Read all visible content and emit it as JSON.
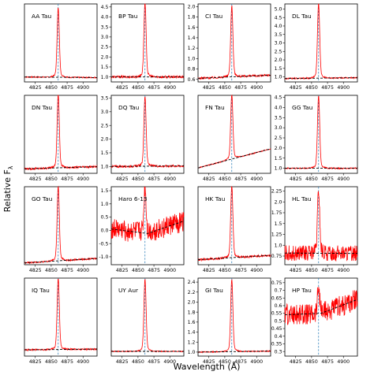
{
  "figure": {
    "xlabel": "Wavelength (Å)",
    "ylabel": "Relative F",
    "ylabel_subscript": "λ"
  },
  "colors": {
    "spectrum": "#ff0000",
    "fit": "#000000",
    "center_line": "#1f77b4",
    "frame": "#000000"
  },
  "chart_data": [
    {
      "type": "line",
      "label": "AA Tau",
      "xticks": [
        4825,
        4850,
        4875,
        4900
      ],
      "yticks": [],
      "ylim": [
        0.6,
        7.2
      ],
      "xlim": [
        4808,
        4922
      ],
      "series": [
        {
          "name": "spectrum",
          "peak": 6.6,
          "base_left": 1.02,
          "base_right": 0.97,
          "noise": 0.05
        }
      ],
      "fit": [
        [
          4808,
          1.02
        ],
        [
          4922,
          0.97
        ]
      ],
      "center": 4861
    },
    {
      "type": "line",
      "label": "BP Tau",
      "xticks": [
        4825,
        4850,
        4875,
        4900
      ],
      "yticks": [
        1.0,
        1.5,
        2.0,
        2.5,
        3.0,
        3.5,
        4.0,
        4.5
      ],
      "ylim": [
        0.75,
        4.65
      ],
      "xlim": [
        4808,
        4922
      ],
      "series": [
        {
          "name": "spectrum",
          "peak": 4.55,
          "base_left": 1.0,
          "base_right": 1.0,
          "noise": 0.06
        }
      ],
      "fit": [
        [
          4808,
          1.0
        ],
        [
          4922,
          1.0
        ]
      ],
      "center": 4861
    },
    {
      "type": "line",
      "label": "CI Tau",
      "xticks": [
        4825,
        4850,
        4875,
        4900
      ],
      "yticks": [
        0.6,
        0.8,
        1.0,
        1.2,
        1.4,
        1.6,
        1.8,
        2.0
      ],
      "ylim": [
        0.55,
        2.05
      ],
      "xlim": [
        4808,
        4922
      ],
      "series": [
        {
          "name": "spectrum",
          "peak": 1.95,
          "base_left": 0.62,
          "base_right": 0.68,
          "noise": 0.02
        }
      ],
      "fit": [
        [
          4808,
          0.62
        ],
        [
          4922,
          0.68
        ]
      ],
      "center": 4861
    },
    {
      "type": "line",
      "label": "DL Tau",
      "xticks": [
        4825,
        4850,
        4875,
        4900
      ],
      "yticks": [
        1.0,
        1.5,
        2.0,
        2.5,
        3.0,
        3.5,
        4.0,
        4.5,
        5.0
      ],
      "ylim": [
        0.7,
        5.3
      ],
      "xlim": [
        4808,
        4922
      ],
      "series": [
        {
          "name": "spectrum",
          "peak": 5.1,
          "base_left": 0.9,
          "base_right": 0.95,
          "noise": 0.04
        }
      ],
      "fit": [
        [
          4808,
          0.9
        ],
        [
          4922,
          0.95
        ]
      ],
      "center": 4861
    },
    {
      "type": "line",
      "label": "DN Tau",
      "xticks": [
        4825,
        4850,
        4875,
        4900
      ],
      "yticks": [],
      "ylim": [
        0.85,
        4.0
      ],
      "xlim": [
        4808,
        4922
      ],
      "series": [
        {
          "name": "spectrum",
          "peak": 3.9,
          "base_left": 1.05,
          "base_right": 1.12,
          "noise": 0.04
        }
      ],
      "fit": [
        [
          4808,
          1.03
        ],
        [
          4922,
          1.12
        ]
      ],
      "center": 4861
    },
    {
      "type": "line",
      "label": "DQ Tau",
      "xticks": [
        4825,
        4850,
        4875,
        4900
      ],
      "yticks": [
        1.0,
        1.5,
        2.0,
        2.5,
        3.0,
        3.5
      ],
      "ylim": [
        0.75,
        3.6
      ],
      "xlim": [
        4808,
        4922
      ],
      "series": [
        {
          "name": "spectrum",
          "peak": 3.45,
          "base_left": 1.0,
          "base_right": 1.02,
          "noise": 0.04
        }
      ],
      "fit": [
        [
          4808,
          1.0
        ],
        [
          4922,
          1.02
        ]
      ],
      "center": 4861
    },
    {
      "type": "line",
      "label": "FN Tau",
      "xticks": [
        4825,
        4850,
        4875,
        4900
      ],
      "yticks": [],
      "ylim": [
        0.0,
        1.75
      ],
      "xlim": [
        4808,
        4922
      ],
      "series": [
        {
          "name": "spectrum",
          "peak": 1.7,
          "base_left": 0.12,
          "base_right": 0.55,
          "noise": 0.01
        }
      ],
      "fit": [
        [
          4808,
          0.12
        ],
        [
          4922,
          0.55
        ]
      ],
      "center": 4861
    },
    {
      "type": "line",
      "label": "GG Tau",
      "xticks": [
        4825,
        4850,
        4875,
        4900
      ],
      "yticks": [
        1.0,
        1.5,
        2.0,
        2.5,
        3.0,
        3.5,
        4.0,
        4.5
      ],
      "ylim": [
        0.75,
        4.6
      ],
      "xlim": [
        4808,
        4922
      ],
      "series": [
        {
          "name": "spectrum",
          "peak": 4.4,
          "base_left": 1.0,
          "base_right": 1.0,
          "noise": 0.03
        }
      ],
      "fit": [
        [
          4808,
          1.0
        ],
        [
          4922,
          1.0
        ]
      ],
      "center": 4861
    },
    {
      "type": "line",
      "label": "GO Tau",
      "xticks": [
        4825,
        4850,
        4875,
        4900
      ],
      "yticks": [],
      "ylim": [
        0.3,
        5.5
      ],
      "xlim": [
        4808,
        4922
      ],
      "series": [
        {
          "name": "spectrum",
          "peak": 5.3,
          "base_left": 0.42,
          "base_right": 0.7,
          "noise": 0.05
        }
      ],
      "fit": [
        [
          4808,
          0.42
        ],
        [
          4922,
          0.72
        ]
      ],
      "center": 4861
    },
    {
      "type": "line",
      "label": "Haro 6-13",
      "xticks": [
        4825,
        4850,
        4875,
        4900
      ],
      "yticks": [
        -1.0,
        -0.5,
        0.0,
        0.5,
        1.0,
        1.5
      ],
      "ylim": [
        -1.3,
        1.65
      ],
      "xlim": [
        4808,
        4922
      ],
      "series": [
        {
          "name": "spectrum",
          "peak": 1.55,
          "base_left": 0.05,
          "base_right": 0.2,
          "noise": 0.4
        }
      ],
      "fit": [
        [
          4808,
          0.05
        ],
        [
          4865,
          -0.12
        ],
        [
          4922,
          0.35
        ]
      ],
      "center": 4861
    },
    {
      "type": "line",
      "label": "HK Tau",
      "xticks": [
        4825,
        4850,
        4875,
        4900
      ],
      "yticks": [],
      "ylim": [
        0.6,
        6.0
      ],
      "xlim": [
        4808,
        4922
      ],
      "series": [
        {
          "name": "spectrum",
          "peak": 5.8,
          "base_left": 1.0,
          "base_right": 1.2,
          "noise": 0.08
        }
      ],
      "fit": [
        [
          4808,
          0.95
        ],
        [
          4922,
          1.25
        ]
      ],
      "center": 4861
    },
    {
      "type": "line",
      "label": "HL Tau",
      "xticks": [
        4825,
        4850,
        4875,
        4900
      ],
      "yticks": [
        0.75,
        1.0,
        1.25,
        1.5,
        1.75,
        2.0,
        2.25
      ],
      "ylim": [
        0.55,
        2.35
      ],
      "xlim": [
        4808,
        4922
      ],
      "series": [
        {
          "name": "spectrum",
          "peak": 2.2,
          "base_left": 0.82,
          "base_right": 0.8,
          "noise": 0.18
        }
      ],
      "fit": [
        [
          4808,
          0.82
        ],
        [
          4922,
          0.81
        ]
      ],
      "center": 4861
    },
    {
      "type": "line",
      "label": "IQ Tau",
      "xticks": [
        4825,
        4850,
        4875,
        4900
      ],
      "yticks": [],
      "ylim": [
        0.6,
        5.6
      ],
      "xlim": [
        4808,
        4922
      ],
      "series": [
        {
          "name": "spectrum",
          "peak": 5.4,
          "base_left": 1.0,
          "base_right": 1.05,
          "noise": 0.05
        }
      ],
      "fit": [
        [
          4808,
          1.0
        ],
        [
          4922,
          1.05
        ]
      ],
      "center": 4861
    },
    {
      "type": "line",
      "label": "UY Aur",
      "xticks": [
        4825,
        4850,
        4875,
        4900
      ],
      "yticks": [],
      "ylim": [
        0.6,
        7.2
      ],
      "xlim": [
        4808,
        4922
      ],
      "series": [
        {
          "name": "spectrum",
          "peak": 6.8,
          "base_left": 1.0,
          "base_right": 1.0,
          "noise": 0.04
        }
      ],
      "fit": [
        [
          4808,
          1.0
        ],
        [
          4922,
          1.0
        ]
      ],
      "center": 4861
    },
    {
      "type": "line",
      "label": "GI Tau",
      "xticks": [
        4825,
        4850,
        4875,
        4900
      ],
      "yticks": [
        1.0,
        1.2,
        1.4,
        1.6,
        1.8,
        2.0,
        2.2,
        2.4
      ],
      "ylim": [
        0.92,
        2.48
      ],
      "xlim": [
        4808,
        4922
      ],
      "series": [
        {
          "name": "spectrum",
          "peak": 2.38,
          "base_left": 1.0,
          "base_right": 1.02,
          "noise": 0.01
        }
      ],
      "fit": [
        [
          4808,
          1.0
        ],
        [
          4922,
          1.02
        ]
      ],
      "center": 4861
    },
    {
      "type": "line",
      "label": "HP Tau",
      "xticks": [
        4825,
        4850,
        4875,
        4900
      ],
      "yticks": [
        0.3,
        0.35,
        0.4,
        0.45,
        0.5,
        0.55,
        0.6,
        0.65,
        0.7,
        0.75
      ],
      "ylim": [
        0.27,
        0.78
      ],
      "xlim": [
        4808,
        4922
      ],
      "series": [
        {
          "name": "spectrum",
          "peak": 0.72,
          "base_left": 0.56,
          "base_right": 0.58,
          "noise": 0.07
        }
      ],
      "fit": [
        [
          4808,
          0.54
        ],
        [
          4865,
          0.55
        ],
        [
          4922,
          0.64
        ]
      ],
      "center": 4861
    }
  ]
}
